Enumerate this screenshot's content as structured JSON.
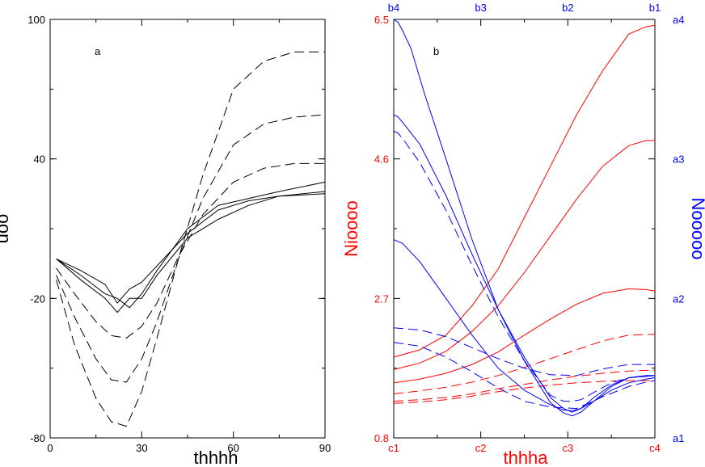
{
  "chart_data": [
    {
      "type": "line",
      "panel_label": "a",
      "xlabel": "thhhh",
      "ylabel": "uoo",
      "xlim": [
        0,
        90
      ],
      "ylim": [
        -80,
        100
      ],
      "x_ticks": [
        "0",
        "30",
        "60",
        "90"
      ],
      "y_ticks": [
        "-80",
        "-20",
        "40",
        "100"
      ],
      "grid": false,
      "line_color": "#000000",
      "series": [
        {
          "dash": "solid",
          "x": [
            2,
            10,
            18,
            22,
            26,
            30,
            35,
            45,
            55,
            65,
            75,
            90
          ],
          "y": [
            -3,
            -8,
            -14,
            -22,
            -16,
            -13,
            -6,
            8,
            18,
            22,
            24,
            26
          ]
        },
        {
          "dash": "solid",
          "x": [
            2,
            10,
            18,
            22,
            26,
            30,
            35,
            45,
            55,
            65,
            75,
            90
          ],
          "y": [
            -3,
            -10,
            -18,
            -20,
            -24,
            -18,
            -8,
            10,
            20,
            23,
            26,
            30
          ]
        },
        {
          "dash": "solid",
          "x": [
            2,
            10,
            18,
            22,
            26,
            30,
            35,
            45,
            55,
            65,
            75,
            90
          ],
          "y": [
            -3,
            -12,
            -20,
            -26,
            -20,
            -20,
            -10,
            6,
            14,
            20,
            24,
            25
          ]
        },
        {
          "dash": "dashed",
          "x": [
            2,
            8,
            15,
            20,
            25,
            30,
            35,
            42,
            50,
            60,
            70,
            80,
            90
          ],
          "y": [
            -7,
            -18,
            -30,
            -36,
            -37,
            -32,
            -22,
            -2,
            16,
            30,
            36,
            38,
            38
          ]
        },
        {
          "dash": "dashed",
          "x": [
            2,
            8,
            15,
            20,
            25,
            30,
            35,
            42,
            50,
            60,
            70,
            80,
            90
          ],
          "y": [
            -10,
            -28,
            -46,
            -55,
            -56,
            -46,
            -30,
            -3,
            23,
            46,
            55,
            58,
            59
          ]
        },
        {
          "dash": "dashed",
          "x": [
            2,
            8,
            15,
            20,
            25,
            30,
            35,
            42,
            50,
            60,
            70,
            80,
            90
          ],
          "y": [
            -12,
            -40,
            -63,
            -73,
            -75,
            -60,
            -37,
            -3,
            33,
            70,
            82,
            86,
            86
          ]
        }
      ]
    },
    {
      "type": "line",
      "panel_label": "b",
      "xlabel": "thhha",
      "ylabel_left": "Nioooo",
      "ylabel_right": "Nooooo",
      "x_ticks_bottom": [
        "c1",
        "c2",
        "c3",
        "c4"
      ],
      "x_ticks_top": [
        "b4",
        "b3",
        "b2",
        "b1"
      ],
      "y_ticks_left": [
        "0.8",
        "2.7",
        "4.6",
        "6.5"
      ],
      "y_ticks_right": [
        "a1",
        "a2",
        "a3",
        "a4"
      ],
      "xlim": [
        0,
        3
      ],
      "ylim": [
        0.8,
        6.5
      ],
      "grid": false,
      "left_axis_color": "#ff0000",
      "right_axis_color": "#0000ff",
      "series": [
        {
          "axis": "left",
          "color": "#ff0000",
          "dash": "solid",
          "x": [
            0,
            0.3,
            0.6,
            0.9,
            1.2,
            1.5,
            1.8,
            2.1,
            2.4,
            2.7,
            2.9,
            3.0
          ],
          "y": [
            1.9,
            2.0,
            2.2,
            2.6,
            3.1,
            3.8,
            4.5,
            5.2,
            5.8,
            6.3,
            6.4,
            6.42
          ]
        },
        {
          "axis": "left",
          "color": "#ff0000",
          "dash": "solid",
          "x": [
            0,
            0.3,
            0.6,
            0.9,
            1.2,
            1.5,
            1.8,
            2.1,
            2.4,
            2.7,
            2.9,
            3.0
          ],
          "y": [
            1.73,
            1.82,
            1.98,
            2.25,
            2.6,
            3.05,
            3.55,
            4.05,
            4.5,
            4.78,
            4.85,
            4.85
          ]
        },
        {
          "axis": "left",
          "color": "#ff0000",
          "dash": "solid",
          "x": [
            0,
            0.3,
            0.6,
            0.9,
            1.2,
            1.5,
            1.8,
            2.1,
            2.4,
            2.7,
            2.9,
            3.0
          ],
          "y": [
            1.55,
            1.6,
            1.68,
            1.8,
            1.97,
            2.2,
            2.42,
            2.62,
            2.77,
            2.83,
            2.82,
            2.8
          ]
        },
        {
          "axis": "left",
          "color": "#ff0000",
          "dash": "dashed",
          "x": [
            0,
            0.3,
            0.6,
            0.9,
            1.2,
            1.5,
            1.8,
            2.1,
            2.4,
            2.7,
            2.9,
            3.0
          ],
          "y": [
            1.4,
            1.44,
            1.49,
            1.56,
            1.65,
            1.76,
            1.88,
            2.0,
            2.12,
            2.2,
            2.21,
            2.21
          ]
        },
        {
          "axis": "left",
          "color": "#ff0000",
          "dash": "dashed",
          "x": [
            0,
            0.3,
            0.6,
            0.9,
            1.2,
            1.5,
            1.8,
            2.1,
            2.4,
            2.7,
            2.9,
            3.0
          ],
          "y": [
            1.3,
            1.32,
            1.35,
            1.4,
            1.47,
            1.53,
            1.59,
            1.64,
            1.68,
            1.71,
            1.72,
            1.72
          ]
        },
        {
          "axis": "left",
          "color": "#ff0000",
          "dash": "dashed",
          "x": [
            0,
            0.3,
            0.6,
            0.9,
            1.2,
            1.5,
            1.8,
            2.1,
            2.4,
            2.7,
            2.9,
            3.0
          ],
          "y": [
            1.27,
            1.29,
            1.32,
            1.37,
            1.43,
            1.48,
            1.52,
            1.55,
            1.57,
            1.58,
            1.58,
            1.58
          ]
        },
        {
          "axis": "left",
          "color": "#0000ff",
          "dash": "solid",
          "x": [
            0,
            0.05,
            0.1,
            0.2,
            0.35,
            0.6,
            0.9,
            1.2,
            1.5,
            1.8,
            1.95,
            2.05,
            2.15,
            2.3,
            2.5,
            2.7,
            2.9,
            3.0
          ],
          "y": [
            6.5,
            6.46,
            6.35,
            6.1,
            5.5,
            4.6,
            3.5,
            2.55,
            1.85,
            1.28,
            1.14,
            1.1,
            1.15,
            1.3,
            1.5,
            1.62,
            1.65,
            1.65
          ]
        },
        {
          "axis": "left",
          "color": "#0000ff",
          "dash": "solid",
          "x": [
            0,
            0.05,
            0.1,
            0.3,
            0.6,
            0.9,
            1.2,
            1.5,
            1.8,
            1.95,
            2.05,
            2.15,
            2.3,
            2.5,
            2.7,
            2.9,
            3.0
          ],
          "y": [
            5.2,
            5.17,
            5.1,
            4.8,
            4.1,
            3.3,
            2.55,
            1.9,
            1.35,
            1.2,
            1.15,
            1.2,
            1.35,
            1.52,
            1.62,
            1.64,
            1.65
          ]
        },
        {
          "axis": "left",
          "color": "#0000ff",
          "dash": "solid",
          "x": [
            0,
            0.1,
            0.3,
            0.6,
            0.9,
            1.2,
            1.5,
            1.8,
            1.95,
            2.05,
            2.15,
            2.3,
            2.5,
            2.7,
            2.9,
            3.0
          ],
          "y": [
            3.5,
            3.45,
            3.2,
            2.7,
            2.2,
            1.75,
            1.45,
            1.25,
            1.18,
            1.17,
            1.2,
            1.3,
            1.45,
            1.55,
            1.6,
            1.62
          ]
        },
        {
          "axis": "left",
          "color": "#0000ff",
          "dash": "dashed",
          "x": [
            0,
            0.05,
            0.1,
            0.3,
            0.6,
            0.9,
            1.2,
            1.5,
            1.8,
            1.95,
            2.05,
            2.15,
            2.3,
            2.5,
            2.7,
            2.9,
            3.0
          ],
          "y": [
            4.98,
            4.95,
            4.88,
            4.55,
            3.9,
            3.15,
            2.45,
            1.85,
            1.38,
            1.3,
            1.3,
            1.32,
            1.42,
            1.55,
            1.62,
            1.64,
            1.65
          ]
        },
        {
          "axis": "left",
          "color": "#0000ff",
          "dash": "dashed",
          "x": [
            0,
            0.3,
            0.6,
            0.9,
            1.2,
            1.5,
            1.8,
            2.1,
            2.4,
            2.7,
            2.9,
            3.0
          ],
          "y": [
            2.3,
            2.27,
            2.18,
            2.03,
            1.88,
            1.75,
            1.66,
            1.65,
            1.74,
            1.8,
            1.8,
            1.8
          ]
        },
        {
          "axis": "left",
          "color": "#0000ff",
          "dash": "dashed",
          "x": [
            0,
            0.3,
            0.6,
            0.9,
            1.2,
            1.5,
            1.8,
            2.1,
            2.4,
            2.7,
            2.9,
            3.0
          ],
          "y": [
            2.1,
            2.05,
            1.9,
            1.7,
            1.48,
            1.3,
            1.22,
            1.2,
            1.36,
            1.5,
            1.56,
            1.58
          ]
        }
      ]
    }
  ]
}
